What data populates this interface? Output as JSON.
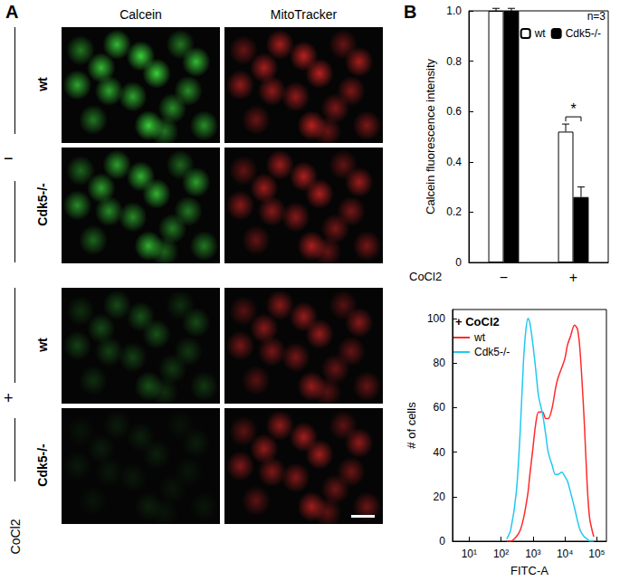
{
  "figure": {
    "panel_labels": [
      "A",
      "B"
    ],
    "columns": [
      "Calcein",
      "MitoTracker"
    ],
    "rows": [
      "wt",
      "Cdk5-/-",
      "wt",
      "Cdk5-/-"
    ],
    "treatments": [
      "−",
      "+"
    ],
    "treatment_name": "CoCl2"
  },
  "chart_data": [
    {
      "type": "bar",
      "categories": [
        "−",
        "+"
      ],
      "x_label": "CoCl2",
      "y_label": "Calcein fluorescence intensity",
      "series": [
        {
          "name": "wt",
          "color": "#ffffff",
          "values": [
            1.0,
            0.52
          ],
          "errors": [
            0.01,
            0.03
          ]
        },
        {
          "name": "Cdk5-/-",
          "color": "#000000",
          "values": [
            1.0,
            0.26
          ],
          "errors": [
            0.01,
            0.04
          ]
        }
      ],
      "ylim": [
        0,
        1
      ],
      "yticks": [
        0,
        0.2,
        0.4,
        0.6,
        0.8,
        {
          "value": 1,
          "label": "1.0"
        }
      ],
      "legend": "upper right",
      "annotations": [
        "n=3",
        "*"
      ]
    },
    {
      "type": "line",
      "title": "+ CoCl2",
      "x_label": "FITC-A",
      "y_label": "# of cells",
      "log": "x",
      "x": [
        150,
        200,
        300,
        400,
        500,
        600,
        700,
        800,
        1000,
        1200,
        1500,
        2000,
        2500,
        3000,
        4000,
        5000,
        6000,
        8000,
        10000,
        12000,
        15000,
        20000,
        25000,
        30000,
        40000,
        50000,
        60000,
        80000
      ],
      "series": [
        {
          "name": "wt",
          "color": "#ff2a2a",
          "values": [
            0,
            0,
            2,
            5,
            10,
            16,
            22,
            30,
            42,
            52,
            58,
            58,
            55,
            55,
            60,
            68,
            73,
            78,
            82,
            88,
            92,
            97,
            95,
            85,
            55,
            25,
            10,
            2
          ]
        },
        {
          "name": "Cdk5-/-",
          "color": "#22c8f0",
          "values": [
            1,
            5,
            22,
            50,
            80,
            95,
            100,
            98,
            88,
            78,
            65,
            57,
            48,
            40,
            34,
            30,
            30,
            31,
            29,
            27,
            22,
            15,
            9,
            5,
            2,
            1,
            0,
            0
          ]
        }
      ],
      "xlim": [
        3,
        200000
      ],
      "xticks": [
        {
          "value": 10,
          "label": "10¹"
        },
        {
          "value": 100,
          "label": "10²"
        },
        {
          "value": 1000,
          "label": "10³"
        },
        {
          "value": 10000,
          "label": "10⁴"
        },
        {
          "value": 100000,
          "label": "10⁵"
        }
      ],
      "ylim": [
        0,
        104
      ],
      "yticks": [
        0,
        20,
        40,
        60,
        80,
        100
      ],
      "legend": "upper left"
    }
  ]
}
